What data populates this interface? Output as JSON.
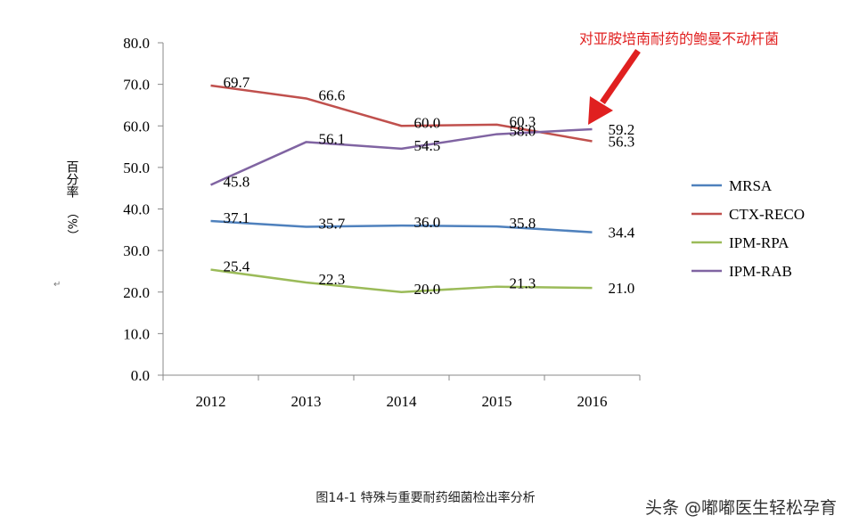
{
  "chart_data": {
    "type": "line",
    "title": "",
    "xlabel": "",
    "ylabel": "百分率（%）",
    "categories": [
      "2012",
      "2013",
      "2014",
      "2015",
      "2016"
    ],
    "ylim": [
      0,
      80
    ],
    "yticks": [
      "0.0",
      "10.0",
      "20.0",
      "30.0",
      "40.0",
      "50.0",
      "60.0",
      "70.0",
      "80.0"
    ],
    "grid": false,
    "legend_position": "right",
    "series": [
      {
        "name": "MRSA",
        "color": "#4f81bd",
        "values": [
          37.1,
          35.7,
          36.0,
          35.8,
          34.4
        ],
        "labels": [
          "37.1",
          "35.7",
          "36.0",
          "35.8",
          "34.4"
        ]
      },
      {
        "name": "CTX-RECO",
        "color": "#c0504d",
        "values": [
          69.7,
          66.6,
          60.0,
          60.3,
          56.3
        ],
        "labels": [
          "69.7",
          "66.6",
          "60.0",
          "60.3",
          "56.3"
        ]
      },
      {
        "name": "IPM-RPA",
        "color": "#9bbb59",
        "values": [
          25.4,
          22.3,
          20.0,
          21.3,
          21.0
        ],
        "labels": [
          "25.4",
          "22.3",
          "20.0",
          "21.3",
          "21.0"
        ]
      },
      {
        "name": "IPM-RAB",
        "color": "#8064a2",
        "values": [
          45.8,
          56.1,
          54.5,
          58.0,
          59.2
        ],
        "labels": [
          "45.8",
          "56.1",
          "54.5",
          "58.0",
          "59.2"
        ]
      }
    ]
  },
  "annotation": {
    "text": "对亚胺培南耐药的鲍曼不动杆菌",
    "color": "#e02020"
  },
  "caption": "图14-1 特殊与重要耐药细菌检出率分析",
  "watermark": "头条 @嘟嘟医生轻松孕育",
  "ylabel_parts": {
    "main": "百分率",
    "unit": "（%）"
  },
  "stray_mark": "↵"
}
